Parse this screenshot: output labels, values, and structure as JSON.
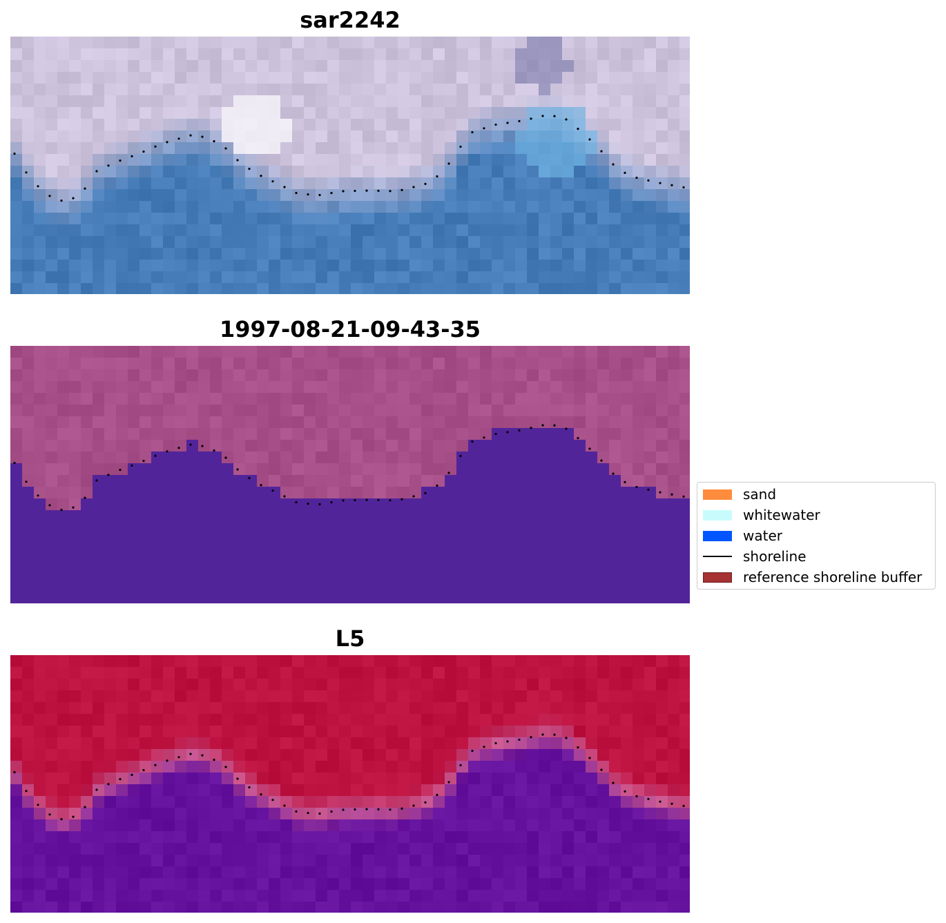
{
  "panels": [
    {
      "title": "sar2242",
      "style": "rgb"
    },
    {
      "title": "1997-08-21-09-43-35",
      "style": "class"
    },
    {
      "title": "L5",
      "style": "prob"
    }
  ],
  "legend": {
    "items": [
      {
        "label": "sand",
        "kind": "patch",
        "color": "#ff8c3c",
        "edge": "#ff8c3c"
      },
      {
        "label": "whitewater",
        "kind": "patch",
        "color": "#c8fcfc",
        "edge": "#c8fcfc"
      },
      {
        "label": "water",
        "kind": "patch",
        "color": "#0055ff",
        "edge": "#0055ff"
      },
      {
        "label": "shoreline",
        "kind": "line",
        "color": "#000000"
      },
      {
        "label": "reference shoreline buffer",
        "kind": "patch",
        "color": "#a63232",
        "edge": "#6e1e1e"
      }
    ]
  },
  "colors": {
    "water_class": "#52249a",
    "land_class": "#a64f88",
    "land_prob": "#bd1240",
    "water_prob": "#64119e",
    "transition_prob": "#c9578f"
  }
}
